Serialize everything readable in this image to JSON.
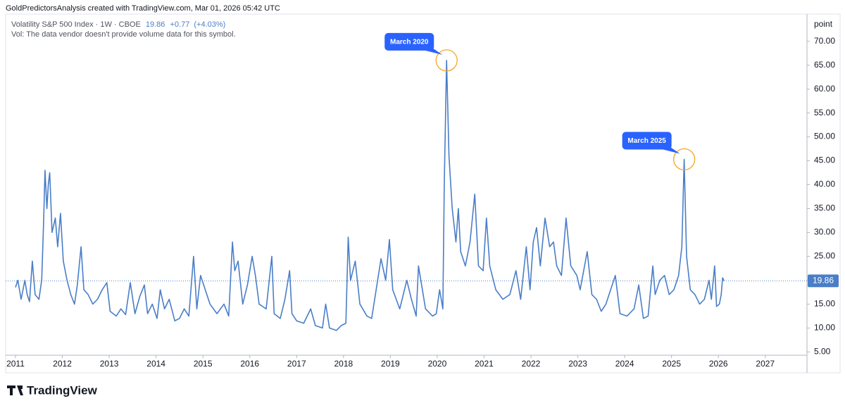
{
  "header": "GoldPredictorsAnalysis created with TradingView.com, Mar 01, 2026 05:42 UTC",
  "legend": {
    "symbol": "Volatility S&P 500 Index · 1W · CBOE",
    "last": 19.86,
    "change": "+0.77",
    "change_pct": "(+4.03%)",
    "volume_note": "Vol: The data vendor doesn't provide volume data for this symbol."
  },
  "brand": "TradingView",
  "chart_data": {
    "type": "line",
    "y_unit": "point",
    "color": "#4a7ec7",
    "x": [
      2011.0,
      2011.05,
      2011.12,
      2011.2,
      2011.25,
      2011.3,
      2011.36,
      2011.42,
      2011.5,
      2011.56,
      2011.6,
      2011.63,
      2011.67,
      2011.7,
      2011.73,
      2011.78,
      2011.85,
      2011.9,
      2011.96,
      2012.02,
      2012.1,
      2012.18,
      2012.26,
      2012.32,
      2012.4,
      2012.46,
      2012.55,
      2012.65,
      2012.75,
      2012.85,
      2012.95,
      2013.02,
      2013.15,
      2013.25,
      2013.35,
      2013.45,
      2013.55,
      2013.65,
      2013.75,
      2013.82,
      2013.92,
      2014.02,
      2014.09,
      2014.18,
      2014.28,
      2014.4,
      2014.5,
      2014.6,
      2014.7,
      2014.8,
      2014.87,
      2014.95,
      2015.05,
      2015.15,
      2015.3,
      2015.45,
      2015.55,
      2015.63,
      2015.68,
      2015.75,
      2015.85,
      2015.95,
      2016.05,
      2016.12,
      2016.2,
      2016.35,
      2016.47,
      2016.52,
      2016.65,
      2016.75,
      2016.85,
      2016.9,
      2017.0,
      2017.15,
      2017.3,
      2017.4,
      2017.55,
      2017.62,
      2017.7,
      2017.85,
      2017.95,
      2018.05,
      2018.1,
      2018.15,
      2018.25,
      2018.35,
      2018.5,
      2018.6,
      2018.8,
      2018.9,
      2018.98,
      2019.05,
      2019.2,
      2019.35,
      2019.45,
      2019.55,
      2019.6,
      2019.75,
      2019.9,
      2019.98,
      2020.05,
      2020.12,
      2020.15,
      2020.2,
      2020.25,
      2020.32,
      2020.4,
      2020.45,
      2020.5,
      2020.6,
      2020.7,
      2020.8,
      2020.88,
      2020.98,
      2021.05,
      2021.12,
      2021.25,
      2021.4,
      2021.55,
      2021.68,
      2021.78,
      2021.9,
      2021.98,
      2022.05,
      2022.12,
      2022.2,
      2022.3,
      2022.4,
      2022.48,
      2022.55,
      2022.65,
      2022.75,
      2022.85,
      2022.98,
      2023.05,
      2023.2,
      2023.3,
      2023.4,
      2023.5,
      2023.6,
      2023.8,
      2023.9,
      2024.05,
      2024.2,
      2024.3,
      2024.4,
      2024.5,
      2024.6,
      2024.65,
      2024.75,
      2024.85,
      2024.95,
      2025.05,
      2025.15,
      2025.22,
      2025.27,
      2025.32,
      2025.4,
      2025.5,
      2025.6,
      2025.7,
      2025.8,
      2025.85,
      2025.92,
      2025.96,
      2026.02,
      2026.06,
      2026.09,
      2026.12
    ],
    "values": [
      18.5,
      20,
      16,
      20,
      17,
      15.5,
      24,
      17,
      16,
      20,
      32,
      43,
      35,
      40,
      42.5,
      30,
      33,
      27,
      34,
      24,
      20,
      17,
      15,
      19,
      27,
      18,
      17,
      15,
      16,
      18,
      19.5,
      13.5,
      12.5,
      14,
      12.8,
      19.5,
      13,
      16.5,
      19,
      13,
      15,
      12,
      18,
      14,
      16,
      11.5,
      12,
      14,
      12.5,
      25,
      14,
      21,
      18,
      15,
      13,
      15,
      12.5,
      28,
      22,
      24,
      15,
      19,
      25,
      21,
      15,
      14,
      25,
      13,
      12,
      16,
      22,
      13,
      11.5,
      11,
      14,
      10.5,
      10,
      15,
      10,
      9.5,
      10.5,
      11,
      29,
      20,
      24,
      15,
      12.5,
      12,
      24.5,
      20,
      28.5,
      18,
      14,
      20,
      16,
      12.5,
      23,
      14,
      12.5,
      13,
      18,
      14,
      40,
      66,
      46,
      35,
      28,
      35,
      26,
      23,
      28,
      38,
      23,
      22,
      33,
      23,
      18,
      16,
      17,
      22,
      16,
      27,
      18,
      28,
      31,
      23,
      33,
      27,
      28,
      23,
      21,
      33,
      23,
      21,
      18,
      26,
      17,
      16,
      13.5,
      15,
      21,
      13,
      12.5,
      14,
      19,
      12,
      12.5,
      23,
      17,
      20,
      21,
      17,
      18,
      21,
      27,
      45.3,
      25,
      18,
      17,
      15,
      16,
      20,
      16,
      23,
      14.5,
      15,
      17,
      20.5,
      19.86
    ],
    "xlim": [
      2010.79,
      2027.89
    ],
    "xticks": [
      2011,
      2012,
      2013,
      2014,
      2015,
      2016,
      2017,
      2018,
      2019,
      2020,
      2021,
      2022,
      2023,
      2024,
      2025,
      2026,
      2027
    ],
    "ylim": [
      4.3,
      75.7
    ],
    "yticks": [
      {
        "value": 5,
        "label": "5.00"
      },
      {
        "value": 10,
        "label": "10.00"
      },
      {
        "value": 15,
        "label": "15.00"
      },
      {
        "value": 20,
        "label": "20.00"
      },
      {
        "value": 25,
        "label": "25.00"
      },
      {
        "value": 30,
        "label": "30.00"
      },
      {
        "value": 35,
        "label": "35.00"
      },
      {
        "value": 40,
        "label": "40.00"
      },
      {
        "value": 45,
        "label": "45.00"
      },
      {
        "value": 50,
        "label": "50.00"
      },
      {
        "value": 55,
        "label": "55.00"
      },
      {
        "value": 60,
        "label": "60.00"
      },
      {
        "value": 65,
        "label": "65.00"
      },
      {
        "value": 70,
        "label": "70.00"
      }
    ],
    "annotations": [
      {
        "text": "March 2020",
        "x": 2020.2,
        "y": 66
      },
      {
        "text": "March 2025",
        "x": 2025.27,
        "y": 45.3
      }
    ]
  }
}
